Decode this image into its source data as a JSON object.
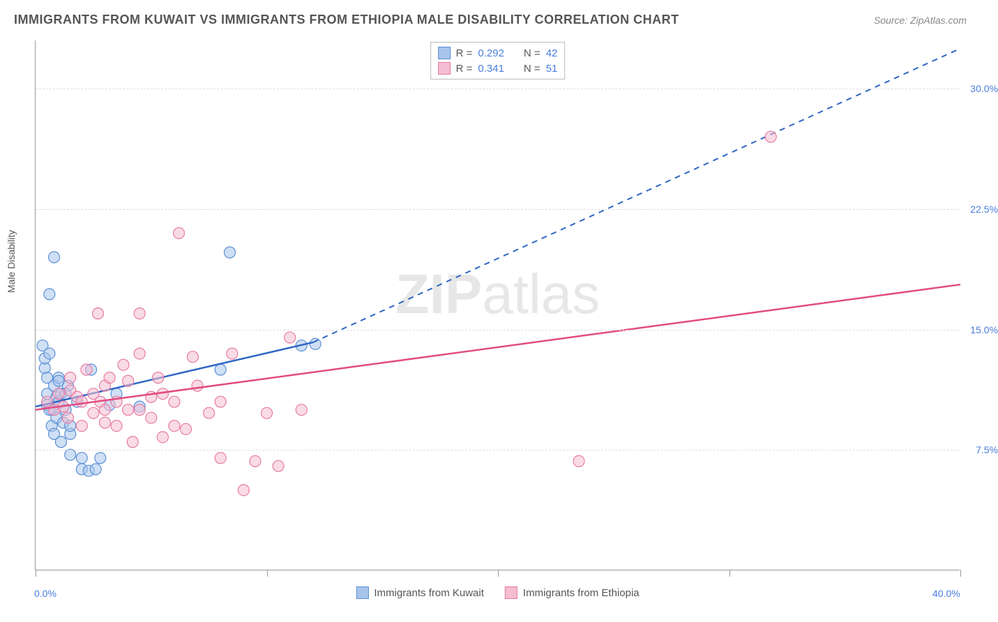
{
  "title": "IMMIGRANTS FROM KUWAIT VS IMMIGRANTS FROM ETHIOPIA MALE DISABILITY CORRELATION CHART",
  "source": "Source: ZipAtlas.com",
  "ylabel": "Male Disability",
  "watermark_bold": "ZIP",
  "watermark_rest": "atlas",
  "chart": {
    "type": "scatter",
    "background_color": "#ffffff",
    "grid_color": "#dddddd",
    "axis_color": "#999999",
    "xlim": [
      0,
      40
    ],
    "ylim": [
      0,
      33
    ],
    "x_ticks": [
      0,
      10,
      20,
      30,
      40
    ],
    "x_tick_labels": {
      "0": "0.0%",
      "40": "40.0%"
    },
    "y_gridlines": [
      7.5,
      15.0,
      22.5,
      30.0
    ],
    "y_tick_labels": [
      "7.5%",
      "15.0%",
      "22.5%",
      "30.0%"
    ],
    "marker_radius": 8,
    "marker_opacity": 0.55,
    "line_width_solid": 2.5,
    "line_width_dash": 2,
    "series": [
      {
        "id": "kuwait",
        "label": "Immigrants from Kuwait",
        "color_stroke": "#5b8fd6",
        "color_fill": "#a8c5eb",
        "line_color": "#2f66c4",
        "R": "0.292",
        "N": "42",
        "trend_solid": {
          "x1": 0,
          "y1": 10.2,
          "x2": 12,
          "y2": 14.2
        },
        "trend_dash": {
          "x1": 12,
          "y1": 14.2,
          "x2": 40,
          "y2": 32.5
        },
        "points": [
          [
            0.3,
            14.0
          ],
          [
            0.4,
            12.6
          ],
          [
            0.4,
            13.2
          ],
          [
            0.5,
            11.0
          ],
          [
            0.5,
            12.0
          ],
          [
            0.5,
            10.3
          ],
          [
            0.6,
            17.2
          ],
          [
            0.6,
            13.5
          ],
          [
            0.7,
            10.0
          ],
          [
            0.7,
            9.0
          ],
          [
            0.8,
            11.5
          ],
          [
            0.8,
            8.5
          ],
          [
            0.8,
            19.5
          ],
          [
            0.9,
            10.8
          ],
          [
            0.9,
            9.5
          ],
          [
            1.0,
            12.0
          ],
          [
            1.0,
            10.5
          ],
          [
            1.1,
            8.0
          ],
          [
            1.1,
            11.0
          ],
          [
            1.2,
            9.2
          ],
          [
            1.3,
            10.0
          ],
          [
            1.4,
            11.5
          ],
          [
            1.5,
            7.2
          ],
          [
            1.5,
            8.5
          ],
          [
            1.8,
            10.5
          ],
          [
            2.0,
            7.0
          ],
          [
            2.0,
            6.3
          ],
          [
            2.3,
            6.2
          ],
          [
            2.4,
            12.5
          ],
          [
            2.6,
            6.3
          ],
          [
            2.8,
            7.0
          ],
          [
            3.2,
            10.3
          ],
          [
            3.5,
            11.0
          ],
          [
            4.5,
            10.2
          ],
          [
            8.4,
            19.8
          ],
          [
            8.0,
            12.5
          ],
          [
            1.3,
            11.0
          ],
          [
            1.5,
            9.0
          ],
          [
            1.0,
            11.8
          ],
          [
            0.6,
            10.0
          ],
          [
            11.5,
            14.0
          ],
          [
            12.1,
            14.1
          ]
        ]
      },
      {
        "id": "ethiopia",
        "label": "Immigrants from Ethiopia",
        "color_stroke": "#e77ba1",
        "color_fill": "#f4bdd1",
        "line_color": "#e24b80",
        "R": "0.341",
        "N": "51",
        "trend_solid": {
          "x1": 0,
          "y1": 10.0,
          "x2": 40,
          "y2": 17.8
        },
        "trend_dash": null,
        "points": [
          [
            0.5,
            10.5
          ],
          [
            0.8,
            10.0
          ],
          [
            1.0,
            11.0
          ],
          [
            1.2,
            10.2
          ],
          [
            1.4,
            9.5
          ],
          [
            1.5,
            11.2
          ],
          [
            1.5,
            12.0
          ],
          [
            1.8,
            10.8
          ],
          [
            2.0,
            9.0
          ],
          [
            2.0,
            10.5
          ],
          [
            2.2,
            12.5
          ],
          [
            2.5,
            11.0
          ],
          [
            2.5,
            9.8
          ],
          [
            2.7,
            16.0
          ],
          [
            2.8,
            10.5
          ],
          [
            3.0,
            9.2
          ],
          [
            3.0,
            11.5
          ],
          [
            3.2,
            12.0
          ],
          [
            3.5,
            9.0
          ],
          [
            3.5,
            10.5
          ],
          [
            3.8,
            12.8
          ],
          [
            4.0,
            10.0
          ],
          [
            4.0,
            11.8
          ],
          [
            4.2,
            8.0
          ],
          [
            4.5,
            10.0
          ],
          [
            4.5,
            13.5
          ],
          [
            4.5,
            16.0
          ],
          [
            5.0,
            9.5
          ],
          [
            5.0,
            10.8
          ],
          [
            5.3,
            12.0
          ],
          [
            5.5,
            8.3
          ],
          [
            5.5,
            11.0
          ],
          [
            6.0,
            9.0
          ],
          [
            6.0,
            10.5
          ],
          [
            6.2,
            21.0
          ],
          [
            6.5,
            8.8
          ],
          [
            6.8,
            13.3
          ],
          [
            7.0,
            11.5
          ],
          [
            7.5,
            9.8
          ],
          [
            8.0,
            10.5
          ],
          [
            8.0,
            7.0
          ],
          [
            8.5,
            13.5
          ],
          [
            9.0,
            5.0
          ],
          [
            9.5,
            6.8
          ],
          [
            10.0,
            9.8
          ],
          [
            10.5,
            6.5
          ],
          [
            11.0,
            14.5
          ],
          [
            11.5,
            10.0
          ],
          [
            23.5,
            6.8
          ],
          [
            31.8,
            27.0
          ],
          [
            3.0,
            10.0
          ]
        ]
      }
    ]
  },
  "legend_top": {
    "rows": [
      {
        "swatch_fill": "#a8c5eb",
        "swatch_stroke": "#5b8fd6",
        "R_label": "R =",
        "R": "0.292",
        "N_label": "N =",
        "N": "42"
      },
      {
        "swatch_fill": "#f4bdd1",
        "swatch_stroke": "#e77ba1",
        "R_label": "R =",
        "R": "0.341",
        "N_label": "N =",
        "N": "51"
      }
    ]
  },
  "legend_bottom": {
    "items": [
      {
        "swatch_fill": "#a8c5eb",
        "swatch_stroke": "#5b8fd6",
        "label": "Immigrants from Kuwait"
      },
      {
        "swatch_fill": "#f4bdd1",
        "swatch_stroke": "#e77ba1",
        "label": "Immigrants from Ethiopia"
      }
    ]
  }
}
